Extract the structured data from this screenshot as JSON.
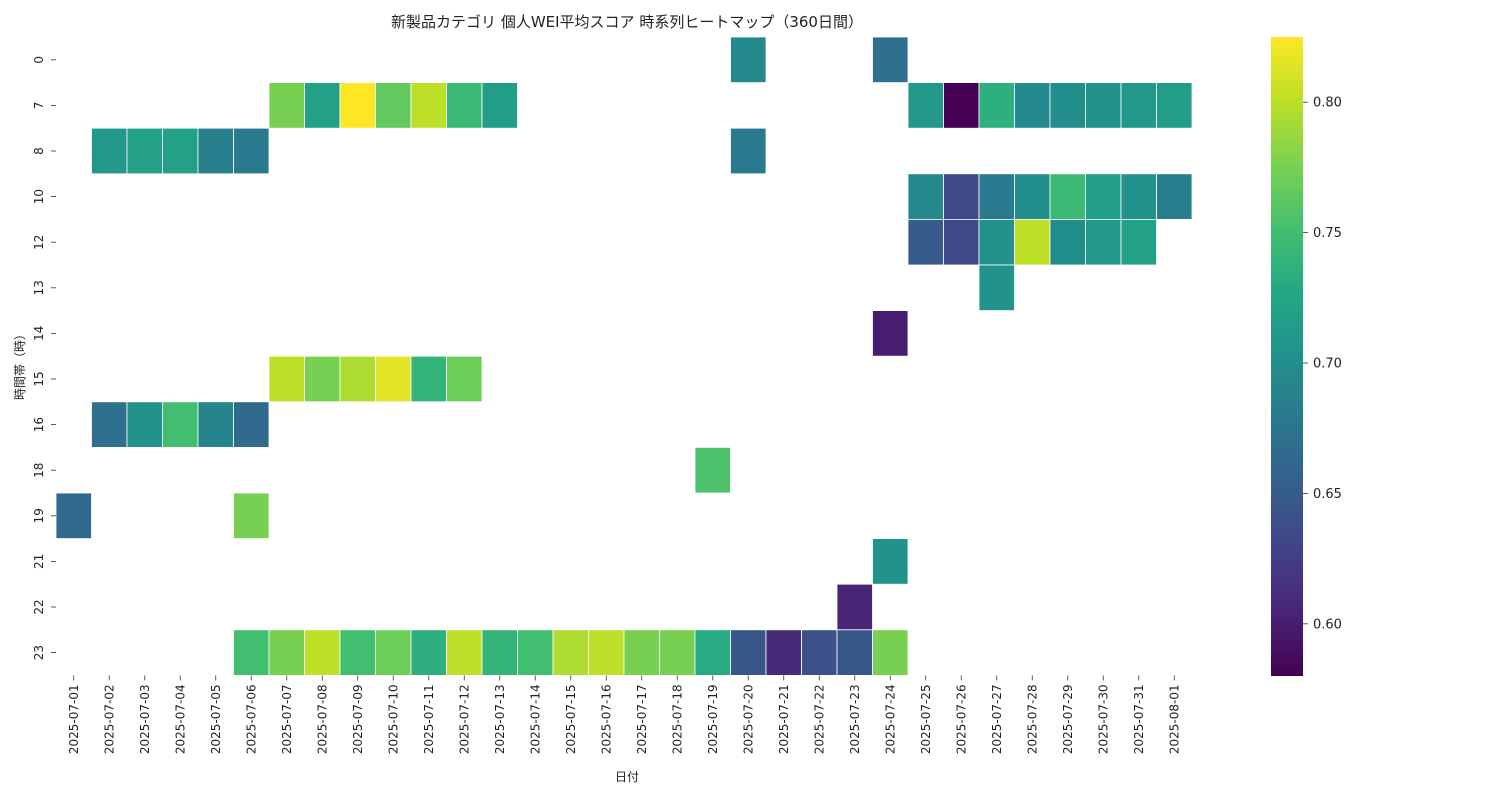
{
  "chart_data": {
    "type": "heatmap",
    "title": "新製品カテゴリ 個人WEI平均スコア 時系列ヒートマップ（360日間）",
    "xlabel": "日付",
    "ylabel": "時間帯（時）",
    "x": [
      "2025-07-01",
      "2025-07-02",
      "2025-07-03",
      "2025-07-04",
      "2025-07-05",
      "2025-07-06",
      "2025-07-07",
      "2025-07-08",
      "2025-07-09",
      "2025-07-10",
      "2025-07-11",
      "2025-07-12",
      "2025-07-13",
      "2025-07-14",
      "2025-07-15",
      "2025-07-16",
      "2025-07-17",
      "2025-07-18",
      "2025-07-19",
      "2025-07-20",
      "2025-07-21",
      "2025-07-22",
      "2025-07-23",
      "2025-07-24",
      "2025-07-25",
      "2025-07-26",
      "2025-07-27",
      "2025-07-28",
      "2025-07-29",
      "2025-07-30",
      "2025-07-31",
      "2025-08-01"
    ],
    "y": [
      "0",
      "7",
      "8",
      "10",
      "12",
      "13",
      "14",
      "15",
      "16",
      "18",
      "19",
      "21",
      "22",
      "23"
    ],
    "values": [
      [
        null,
        null,
        null,
        null,
        null,
        null,
        null,
        null,
        null,
        null,
        null,
        null,
        null,
        null,
        null,
        null,
        null,
        null,
        null,
        0.695,
        null,
        null,
        null,
        0.67,
        null,
        null,
        null,
        null,
        null,
        null,
        null,
        null
      ],
      [
        null,
        null,
        null,
        null,
        null,
        null,
        0.775,
        0.72,
        0.825,
        0.765,
        0.8,
        0.745,
        0.715,
        null,
        null,
        null,
        null,
        null,
        null,
        null,
        null,
        null,
        null,
        null,
        0.71,
        0.58,
        0.735,
        0.695,
        0.7,
        0.705,
        0.71,
        0.715
      ],
      [
        null,
        0.71,
        0.72,
        0.72,
        0.685,
        0.68,
        null,
        null,
        null,
        null,
        null,
        null,
        null,
        null,
        null,
        null,
        null,
        null,
        null,
        0.68,
        null,
        null,
        null,
        null,
        null,
        null,
        null,
        null,
        null,
        null,
        null,
        null
      ],
      [
        null,
        null,
        null,
        null,
        null,
        null,
        null,
        null,
        null,
        null,
        null,
        null,
        null,
        null,
        null,
        null,
        null,
        null,
        null,
        null,
        null,
        null,
        null,
        null,
        0.695,
        0.635,
        0.68,
        0.7,
        0.745,
        0.715,
        0.705,
        0.685
      ],
      [
        null,
        null,
        null,
        null,
        null,
        null,
        null,
        null,
        null,
        null,
        null,
        null,
        null,
        null,
        null,
        null,
        null,
        null,
        null,
        null,
        null,
        null,
        null,
        null,
        0.65,
        0.635,
        0.705,
        0.8,
        0.7,
        0.71,
        0.72,
        null
      ],
      [
        null,
        null,
        null,
        null,
        null,
        null,
        null,
        null,
        null,
        null,
        null,
        null,
        null,
        null,
        null,
        null,
        null,
        null,
        null,
        null,
        null,
        null,
        null,
        null,
        null,
        null,
        0.705,
        null,
        null,
        null,
        null,
        null
      ],
      [
        null,
        null,
        null,
        null,
        null,
        null,
        null,
        null,
        null,
        null,
        null,
        null,
        null,
        null,
        null,
        null,
        null,
        null,
        null,
        null,
        null,
        null,
        null,
        0.6,
        null,
        null,
        null,
        null,
        null,
        null,
        null,
        null
      ],
      [
        null,
        null,
        null,
        null,
        null,
        null,
        0.8,
        0.775,
        0.795,
        0.815,
        0.74,
        0.77,
        null,
        null,
        null,
        null,
        null,
        null,
        null,
        null,
        null,
        null,
        null,
        null,
        null,
        null,
        null,
        null,
        null,
        null,
        null,
        null
      ],
      [
        null,
        0.67,
        0.705,
        0.75,
        0.69,
        0.665,
        null,
        null,
        null,
        null,
        null,
        null,
        null,
        null,
        null,
        null,
        null,
        null,
        null,
        null,
        null,
        null,
        null,
        null,
        null,
        null,
        null,
        null,
        null,
        null,
        null,
        null
      ],
      [
        null,
        null,
        null,
        null,
        null,
        null,
        null,
        null,
        null,
        null,
        null,
        null,
        null,
        null,
        null,
        null,
        null,
        null,
        0.755,
        null,
        null,
        null,
        null,
        null,
        null,
        null,
        null,
        null,
        null,
        null,
        null,
        null
      ],
      [
        0.665,
        null,
        null,
        null,
        null,
        0.775,
        null,
        null,
        null,
        null,
        null,
        null,
        null,
        null,
        null,
        null,
        null,
        null,
        null,
        null,
        null,
        null,
        null,
        null,
        null,
        null,
        null,
        null,
        null,
        null,
        null,
        null
      ],
      [
        null,
        null,
        null,
        null,
        null,
        null,
        null,
        null,
        null,
        null,
        null,
        null,
        null,
        null,
        null,
        null,
        null,
        null,
        null,
        null,
        null,
        null,
        null,
        0.705,
        null,
        null,
        null,
        null,
        null,
        null,
        null,
        null
      ],
      [
        null,
        null,
        null,
        null,
        null,
        null,
        null,
        null,
        null,
        null,
        null,
        null,
        null,
        null,
        null,
        null,
        null,
        null,
        null,
        null,
        null,
        null,
        0.605,
        null,
        null,
        null,
        null,
        null,
        null,
        null,
        null,
        null
      ],
      [
        null,
        null,
        null,
        null,
        null,
        0.75,
        0.775,
        0.8,
        0.75,
        0.77,
        0.735,
        0.8,
        0.74,
        0.75,
        0.795,
        0.8,
        0.775,
        0.775,
        0.73,
        0.645,
        0.61,
        0.64,
        0.645,
        0.775,
        null,
        null,
        null,
        null,
        null,
        null,
        null,
        null
      ]
    ],
    "colorbar": {
      "colormap": "viridis",
      "vmin": 0.58,
      "vmax": 0.825,
      "ticks": [
        0.6,
        0.65,
        0.7,
        0.75,
        0.8
      ],
      "tick_labels": [
        "0.60",
        "0.65",
        "0.70",
        "0.75",
        "0.80"
      ]
    },
    "grid": false
  }
}
